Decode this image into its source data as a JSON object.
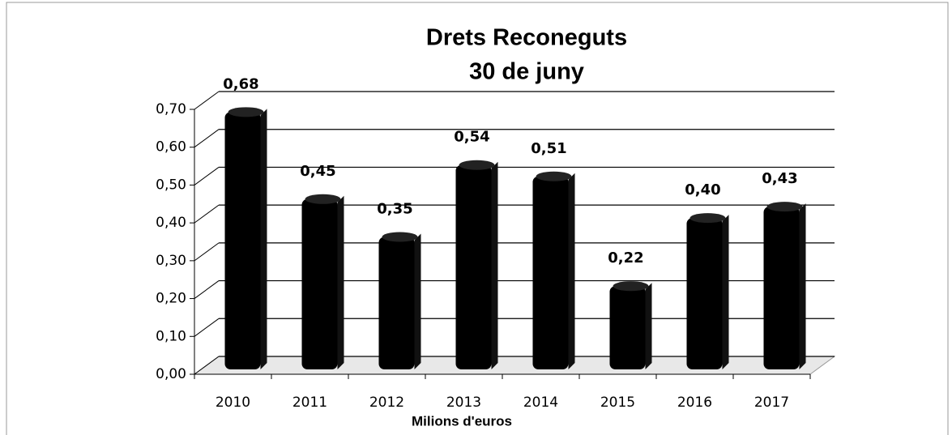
{
  "chart_data": {
    "type": "bar",
    "title": "Drets Reconeguts",
    "subtitle": "30 de juny",
    "x_label": "Milions d'euros",
    "categories": [
      "2010",
      "2011",
      "2012",
      "2013",
      "2014",
      "2015",
      "2016",
      "2017"
    ],
    "values": [
      0.68,
      0.45,
      0.35,
      0.54,
      0.51,
      0.22,
      0.4,
      0.43
    ],
    "value_labels": [
      "0,68",
      "0,45",
      "0,35",
      "0,54",
      "0,51",
      "0,22",
      "0,40",
      "0,43"
    ],
    "color": "#000000",
    "ylim": [
      0,
      0.7
    ],
    "yticks": [
      {
        "value": 0,
        "label": "0,00"
      },
      {
        "value": 0.1,
        "label": "0,10"
      },
      {
        "value": 0.2,
        "label": "0,20"
      },
      {
        "value": 0.3,
        "label": "0,30"
      },
      {
        "value": 0.4,
        "label": "0,40"
      },
      {
        "value": 0.5,
        "label": "0,50"
      },
      {
        "value": 0.6,
        "label": "0,60"
      },
      {
        "value": 0.7,
        "label": "0,70"
      }
    ],
    "grid": true
  }
}
